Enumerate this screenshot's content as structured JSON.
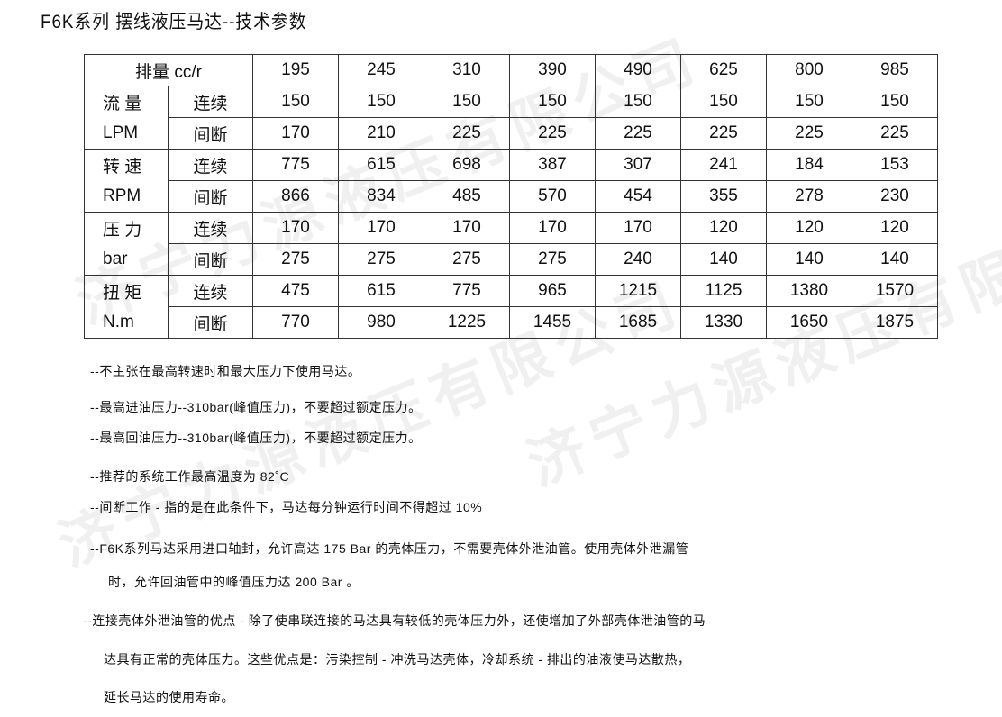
{
  "title": "F6K系列 摆线液压马达--技术参数",
  "watermark": "济宁力源液压有限公司",
  "table": {
    "header_label": "排量 cc/r",
    "displacements": [
      "195",
      "245",
      "310",
      "390",
      "490",
      "625",
      "800",
      "985"
    ],
    "groups": [
      {
        "name": "流 量",
        "unit": "LPM",
        "rows": [
          {
            "mode": "连续",
            "values": [
              "150",
              "150",
              "150",
              "150",
              "150",
              "150",
              "150",
              "150"
            ]
          },
          {
            "mode": "间断",
            "values": [
              "170",
              "210",
              "225",
              "225",
              "225",
              "225",
              "225",
              "225"
            ]
          }
        ]
      },
      {
        "name": "转 速",
        "unit": "RPM",
        "rows": [
          {
            "mode": "连续",
            "values": [
              "775",
              "615",
              "698",
              "387",
              "307",
              "241",
              "184",
              "153"
            ]
          },
          {
            "mode": "间断",
            "values": [
              "866",
              "834",
              "485",
              "570",
              "454",
              "355",
              "278",
              "230"
            ]
          }
        ]
      },
      {
        "name": "压 力",
        "unit": "bar",
        "rows": [
          {
            "mode": "连续",
            "values": [
              "170",
              "170",
              "170",
              "170",
              "170",
              "120",
              "120",
              "120"
            ]
          },
          {
            "mode": "间断",
            "values": [
              "275",
              "275",
              "275",
              "275",
              "240",
              "140",
              "140",
              "140"
            ]
          }
        ]
      },
      {
        "name": "扭 矩",
        "unit": "N.m",
        "rows": [
          {
            "mode": "连续",
            "values": [
              "475",
              "615",
              "775",
              "965",
              "1215",
              "1125",
              "1380",
              "1570"
            ]
          },
          {
            "mode": "间断",
            "values": [
              "770",
              "980",
              "1225",
              "1455",
              "1685",
              "1330",
              "1650",
              "1875"
            ]
          }
        ]
      }
    ]
  },
  "notes": [
    "--不主张在最高转速时和最大压力下使用马达。",
    "--最高进油压力--310bar(峰值压力)，不要超过额定压力。",
    "--最高回油压力--310bar(峰值压力)，不要超过额定压力。",
    "--推荐的系统工作最高温度为 82˚C",
    "--间断工作 - 指的是在此条件下，马达每分钟运行时间不得超过 10%",
    "--F6K系列马达采用进口轴封，允许高达 175 Bar 的壳体压力，不需要壳体外泄油管。使用壳体外泄漏管",
    "时，允许回油管中的峰值压力达 200 Bar 。",
    "--连接壳体外泄油管的优点 - 除了使串联连接的马达具有较低的壳体压力外，还使增加了外部壳体泄油管的马",
    "达具有正常的壳体压力。这些优点是：污染控制 - 冲洗马达壳体，冷却系统 - 排出的油液使马达散热，",
    "延长马达的使用寿命。"
  ]
}
